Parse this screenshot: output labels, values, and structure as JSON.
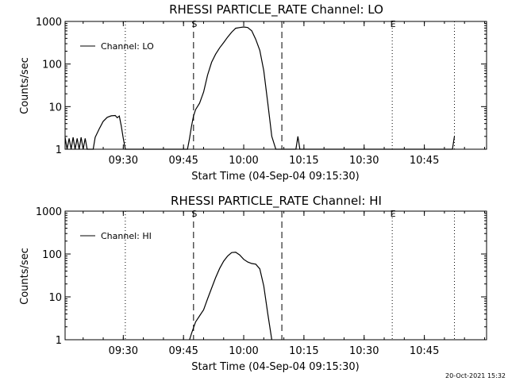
{
  "footer": {
    "timestamp": "20-Oct-2021 15:32"
  },
  "chart_data": [
    {
      "type": "line",
      "title": "RHESSI PARTICLE_RATE Channel: LO",
      "xlabel": "Start Time (04-Sep-04 09:15:30)",
      "ylabel": "Counts/sec",
      "y_scale": "log",
      "ylim": [
        1,
        1000
      ],
      "xlim": [
        "09:15:30",
        "11:00:30"
      ],
      "x_ticks": [
        "09:30",
        "09:45",
        "10:00",
        "10:15",
        "10:30",
        "10:45"
      ],
      "y_ticks": [
        "1",
        "10",
        "100",
        "1000"
      ],
      "legend": {
        "entries": [
          "Channel: LO"
        ],
        "position": "top-left"
      },
      "markers": [
        {
          "label": "S",
          "time": "09:47:30",
          "style": "dashed"
        },
        {
          "label": "",
          "time": "10:09:30",
          "style": "dashed"
        },
        {
          "label": "",
          "time": "09:30:30",
          "style": "dotted"
        },
        {
          "label": "E",
          "time": "10:37:00",
          "style": "dotted"
        },
        {
          "label": "",
          "time": "10:52:30",
          "style": "dotted"
        }
      ],
      "series": [
        {
          "name": "Channel: LO",
          "x": [
            "09:15:30",
            "09:16:00",
            "09:16:30",
            "09:17:00",
            "09:17:30",
            "09:18:00",
            "09:18:30",
            "09:19:00",
            "09:19:30",
            "09:20:00",
            "09:20:30",
            "09:21:00",
            "09:21:30",
            "09:22:30",
            "09:23:00",
            "09:24:00",
            "09:25:00",
            "09:26:00",
            "09:27:00",
            "09:28:00",
            "09:28:30",
            "09:29:00",
            "09:29:30",
            "09:30:00",
            "09:30:30",
            "09:46:00",
            "09:46:30",
            "09:47:00",
            "09:47:30",
            "09:48:00",
            "09:49:00",
            "09:50:00",
            "09:51:00",
            "09:52:00",
            "09:53:00",
            "09:54:00",
            "09:55:00",
            "09:56:00",
            "09:57:00",
            "09:58:00",
            "09:59:00",
            "10:00:00",
            "10:01:00",
            "10:02:00",
            "10:03:00",
            "10:04:00",
            "10:05:00",
            "10:06:00",
            "10:07:00",
            "10:08:00",
            "10:13:00",
            "10:13:30",
            "10:14:00",
            "10:52:00",
            "10:52:30"
          ],
          "y": [
            1.9,
            1,
            1.8,
            1,
            1.9,
            1,
            1.8,
            1,
            1.9,
            1,
            1.8,
            1,
            1,
            1,
            1.9,
            3,
            4.5,
            5.6,
            6.1,
            6.2,
            5.5,
            6,
            3.5,
            1.8,
            1,
            1,
            1.8,
            3.5,
            6,
            8.5,
            12,
            22,
            55,
            110,
            170,
            240,
            320,
            430,
            560,
            690,
            720,
            740,
            720,
            600,
            380,
            210,
            70,
            12,
            2,
            1,
            1,
            2,
            1,
            1,
            2
          ]
        }
      ]
    },
    {
      "type": "line",
      "title": "RHESSI PARTICLE_RATE Channel: HI",
      "xlabel": "Start Time (04-Sep-04 09:15:30)",
      "ylabel": "Counts/sec",
      "y_scale": "log",
      "ylim": [
        1,
        1000
      ],
      "xlim": [
        "09:15:30",
        "11:00:30"
      ],
      "x_ticks": [
        "09:30",
        "09:45",
        "10:00",
        "10:15",
        "10:30",
        "10:45"
      ],
      "y_ticks": [
        "1",
        "10",
        "100",
        "1000"
      ],
      "legend": {
        "entries": [
          "Channel: HI"
        ],
        "position": "top-left"
      },
      "markers": [
        {
          "label": "S",
          "time": "09:47:30",
          "style": "dashed"
        },
        {
          "label": "",
          "time": "10:09:30",
          "style": "dashed"
        },
        {
          "label": "",
          "time": "09:30:30",
          "style": "dotted"
        },
        {
          "label": "E",
          "time": "10:37:00",
          "style": "dotted"
        },
        {
          "label": "",
          "time": "10:52:30",
          "style": "dotted"
        }
      ],
      "series": [
        {
          "name": "Channel: HI",
          "x": [
            "09:46:30",
            "09:47:00",
            "09:47:30",
            "09:48:00",
            "09:49:00",
            "09:50:00",
            "09:51:00",
            "09:52:00",
            "09:53:00",
            "09:54:00",
            "09:55:00",
            "09:56:00",
            "09:57:00",
            "09:58:00",
            "09:59:00",
            "10:00:00",
            "10:01:00",
            "10:02:00",
            "10:03:00",
            "10:04:00",
            "10:05:00",
            "10:06:00",
            "10:07:00"
          ],
          "y": [
            1,
            1.4,
            1.9,
            2.6,
            3.6,
            5,
            9,
            16,
            28,
            46,
            68,
            90,
            108,
            110,
            95,
            75,
            65,
            60,
            58,
            45,
            18,
            4,
            1
          ]
        }
      ]
    }
  ]
}
